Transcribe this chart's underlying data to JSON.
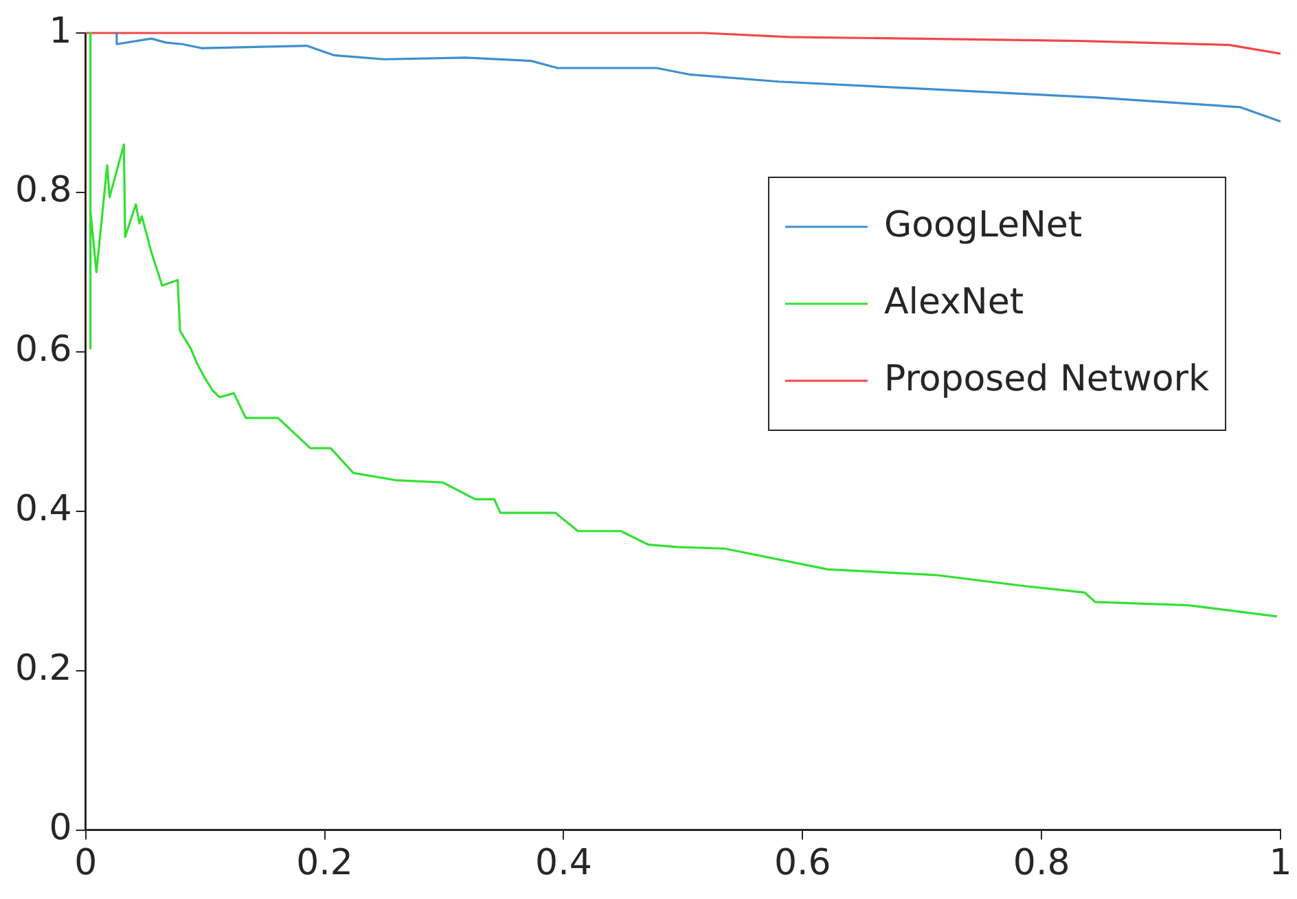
{
  "chart_data": {
    "type": "line",
    "xlim": [
      0,
      1
    ],
    "xticks": [
      0,
      0.2,
      0.4,
      0.6,
      0.8,
      1
    ],
    "ylim": [
      0,
      1
    ],
    "yticks": [
      0,
      0.2,
      0.4,
      0.6,
      0.8,
      1
    ],
    "grid": false,
    "legend": "top right",
    "marker": "none",
    "line_style": "solid",
    "series": [
      {
        "name": "GoogLeNet",
        "color": "#3d8fd1",
        "x": [
          0.026,
          0.026,
          0.055,
          0.067,
          0.081,
          0.097,
          0.185,
          0.208,
          0.25,
          0.318,
          0.373,
          0.395,
          0.478,
          0.505,
          0.58,
          0.7,
          0.846,
          0.966,
          1
        ],
        "values": [
          1,
          0.986,
          0.993,
          0.988,
          0.986,
          0.981,
          0.984,
          0.972,
          0.967,
          0.969,
          0.965,
          0.956,
          0.956,
          0.948,
          0.939,
          0.93,
          0.919,
          0.907,
          0.889
        ]
      },
      {
        "name": "AlexNet",
        "color": "#33e033",
        "x": [
          0.004,
          0.004,
          0.004,
          0.009,
          0.018,
          0.02,
          0.032,
          0.033,
          0.042,
          0.045,
          0.047,
          0.055,
          0.064,
          0.077,
          0.079,
          0.088,
          0.093,
          0.099,
          0.106,
          0.112,
          0.124,
          0.134,
          0.161,
          0.188,
          0.205,
          0.224,
          0.259,
          0.299,
          0.326,
          0.342,
          0.347,
          0.393,
          0.412,
          0.448,
          0.471,
          0.495,
          0.535,
          0.621,
          0.711,
          0.786,
          0.836,
          0.845,
          0.923,
          0.997
        ],
        "values": [
          1,
          0.604,
          0.777,
          0.7,
          0.834,
          0.794,
          0.86,
          0.744,
          0.785,
          0.761,
          0.77,
          0.725,
          0.683,
          0.69,
          0.626,
          0.604,
          0.586,
          0.569,
          0.552,
          0.543,
          0.548,
          0.517,
          0.517,
          0.479,
          0.479,
          0.448,
          0.439,
          0.436,
          0.415,
          0.415,
          0.398,
          0.398,
          0.375,
          0.375,
          0.358,
          0.355,
          0.353,
          0.327,
          0.32,
          0.306,
          0.298,
          0.286,
          0.282,
          0.268
        ]
      },
      {
        "name": "Proposed Network",
        "color": "#f04848",
        "x": [
          0,
          0.518,
          0.589,
          0.833,
          0.957,
          1
        ],
        "values": [
          1,
          1,
          0.995,
          0.99,
          0.985,
          0.974
        ]
      }
    ]
  }
}
